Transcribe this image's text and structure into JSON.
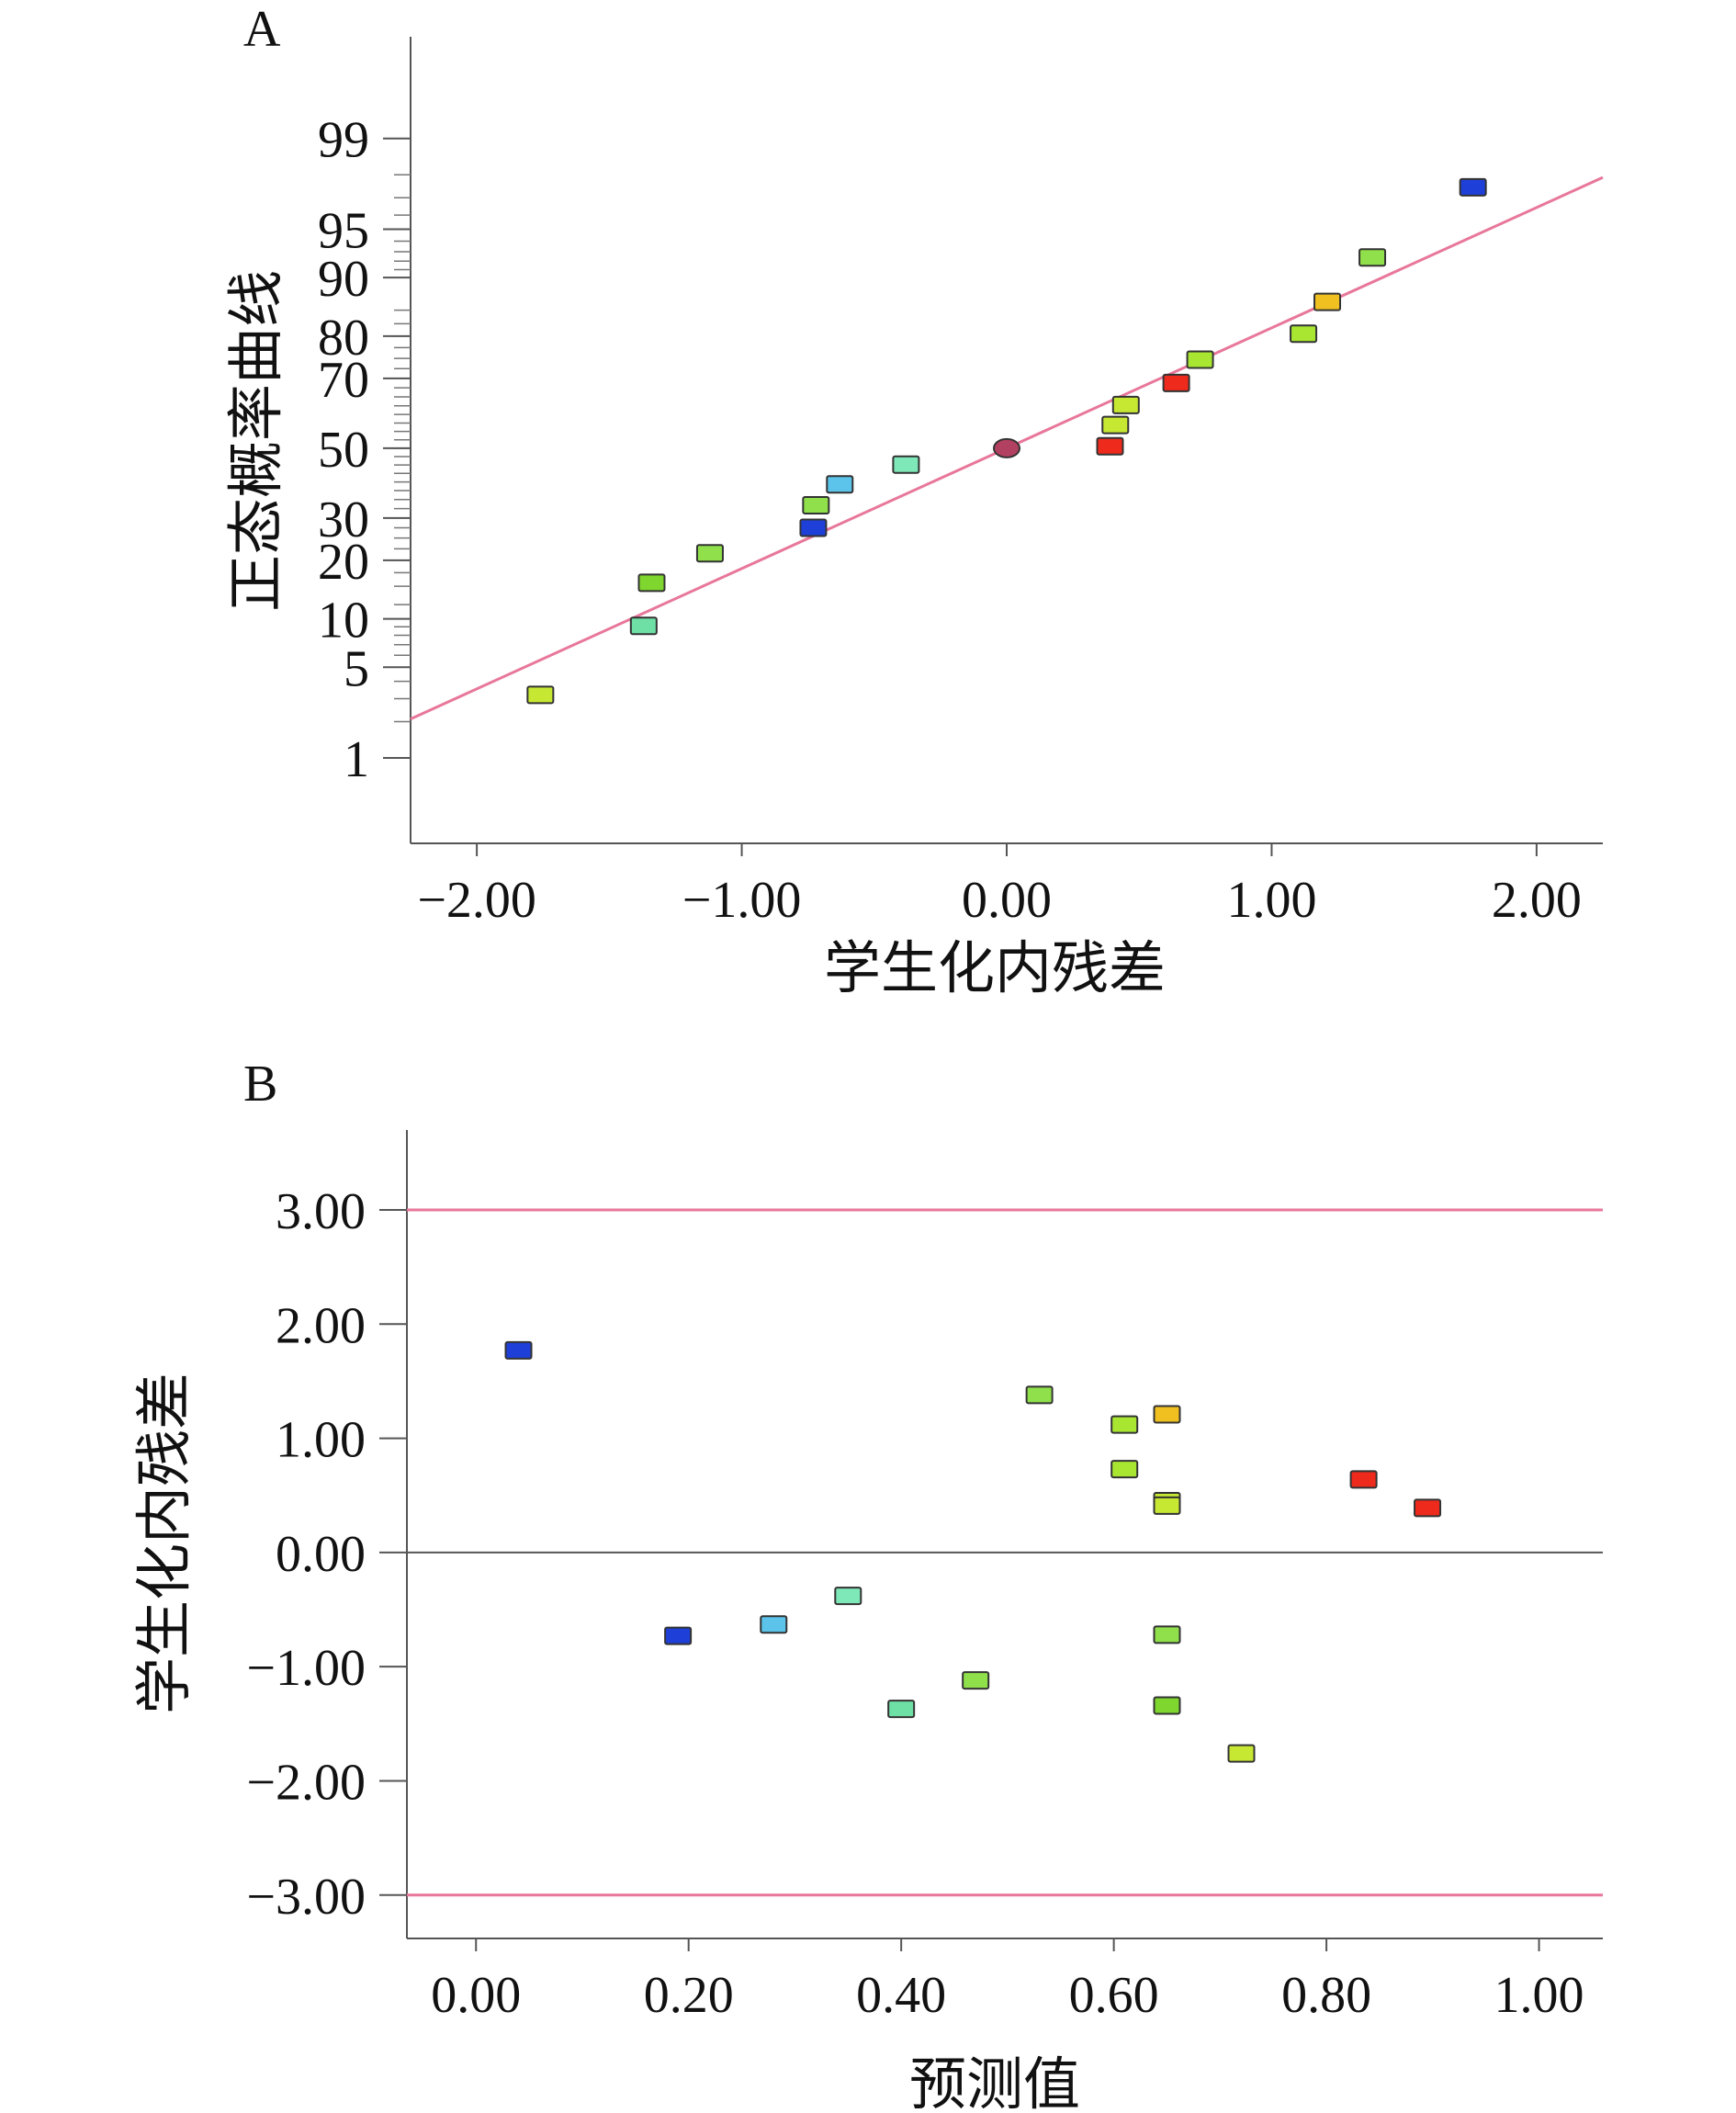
{
  "chart_data": [
    {
      "type": "scatter",
      "panel_label": "A",
      "title": "",
      "xlabel": "学生化内残差",
      "ylabel": "正态概率曲线",
      "x_ticks": [
        "-2.00",
        "-1.00",
        "0.00",
        "1.00",
        "2.00"
      ],
      "x_tick_values": [
        -2,
        -1,
        0,
        1,
        2
      ],
      "y_ticks": [
        "1",
        "5",
        "10",
        "20",
        "30",
        "50",
        "70",
        "80",
        "90",
        "95",
        "99"
      ],
      "y_tick_values": [
        1,
        5,
        10,
        20,
        30,
        50,
        70,
        80,
        90,
        95,
        99
      ],
      "y_scale": "normal-probability",
      "xlim": [
        -2.25,
        2.25
      ],
      "ylim": [
        0.15,
        99.9
      ],
      "fit_line": {
        "x": [
          -2.25,
          2.25
        ],
        "y": [
          2.1,
          97.9
        ],
        "color": "#e8779a"
      },
      "points": [
        {
          "x": -1.76,
          "y": 3.2,
          "color": "#c6e832"
        },
        {
          "x": -1.37,
          "y": 9.1,
          "color": "#6ee0a6"
        },
        {
          "x": -1.34,
          "y": 15.6,
          "color": "#7ed62e"
        },
        {
          "x": -1.12,
          "y": 21.5,
          "color": "#8fe04a"
        },
        {
          "x": -0.73,
          "y": 27.5,
          "color": "#1e40d8"
        },
        {
          "x": -0.72,
          "y": 33.4,
          "color": "#8fe04a"
        },
        {
          "x": -0.63,
          "y": 39.3,
          "color": "#5cc4ea"
        },
        {
          "x": -0.38,
          "y": 45.1,
          "color": "#7ee8b8"
        },
        {
          "x": 0.0,
          "y": 50.0,
          "color": "#b24060",
          "shape": "ellipse"
        },
        {
          "x": 0.39,
          "y": 50.6,
          "color": "#ee2a1c"
        },
        {
          "x": 0.41,
          "y": 56.9,
          "color": "#c6e832"
        },
        {
          "x": 0.45,
          "y": 62.7,
          "color": "#c6e832"
        },
        {
          "x": 0.64,
          "y": 68.8,
          "color": "#ee2a1c"
        },
        {
          "x": 0.73,
          "y": 74.7,
          "color": "#a8e632"
        },
        {
          "x": 1.12,
          "y": 80.5,
          "color": "#a8e632"
        },
        {
          "x": 1.21,
          "y": 86.4,
          "color": "#f0c020"
        },
        {
          "x": 1.38,
          "y": 92.4,
          "color": "#8fe04a"
        },
        {
          "x": 1.76,
          "y": 97.5,
          "color": "#1e40d8"
        }
      ]
    },
    {
      "type": "scatter",
      "panel_label": "B",
      "title": "",
      "xlabel": "预测值",
      "ylabel": "学生化内残差",
      "x_ticks": [
        "0.00",
        "0.20",
        "0.40",
        "0.60",
        "0.80",
        "1.00"
      ],
      "x_tick_values": [
        0,
        0.2,
        0.4,
        0.6,
        0.8,
        1.0
      ],
      "y_ticks": [
        "-3.00",
        "-2.00",
        "-1.00",
        "0.00",
        "1.00",
        "2.00",
        "3.00"
      ],
      "y_tick_values": [
        -3,
        -2,
        -1,
        0,
        1,
        2,
        3
      ],
      "xlim": [
        -0.065,
        1.06
      ],
      "ylim": [
        -3.38,
        3.7
      ],
      "reference_lines": [
        {
          "y": 3.0,
          "color": "#e8779a"
        },
        {
          "y": -3.0,
          "color": "#e8779a"
        },
        {
          "y": 0.0,
          "color": "#555555"
        }
      ],
      "points": [
        {
          "x": 0.04,
          "y": 1.77,
          "color": "#1e40d8"
        },
        {
          "x": 0.19,
          "y": -0.73,
          "color": "#1e40d8"
        },
        {
          "x": 0.28,
          "y": -0.63,
          "color": "#5cc4ea"
        },
        {
          "x": 0.35,
          "y": -0.38,
          "color": "#7ee8b8"
        },
        {
          "x": 0.4,
          "y": -1.37,
          "color": "#6ee0a6"
        },
        {
          "x": 0.47,
          "y": -1.12,
          "color": "#8fe04a"
        },
        {
          "x": 0.53,
          "y": 1.38,
          "color": "#8fe04a"
        },
        {
          "x": 0.61,
          "y": 1.12,
          "color": "#a8e632"
        },
        {
          "x": 0.61,
          "y": 0.73,
          "color": "#a8e632"
        },
        {
          "x": 0.65,
          "y": 1.21,
          "color": "#f0c020"
        },
        {
          "x": 0.65,
          "y": 0.45,
          "color": "#c6e832"
        },
        {
          "x": 0.65,
          "y": 0.41,
          "color": "#c6e832"
        },
        {
          "x": 0.65,
          "y": -0.72,
          "color": "#8fe04a"
        },
        {
          "x": 0.65,
          "y": -1.34,
          "color": "#7ed62e"
        },
        {
          "x": 0.72,
          "y": -1.76,
          "color": "#c6e832"
        },
        {
          "x": 0.835,
          "y": 0.64,
          "color": "#ee2a1c"
        },
        {
          "x": 0.895,
          "y": 0.39,
          "color": "#ee2a1c"
        }
      ]
    }
  ]
}
